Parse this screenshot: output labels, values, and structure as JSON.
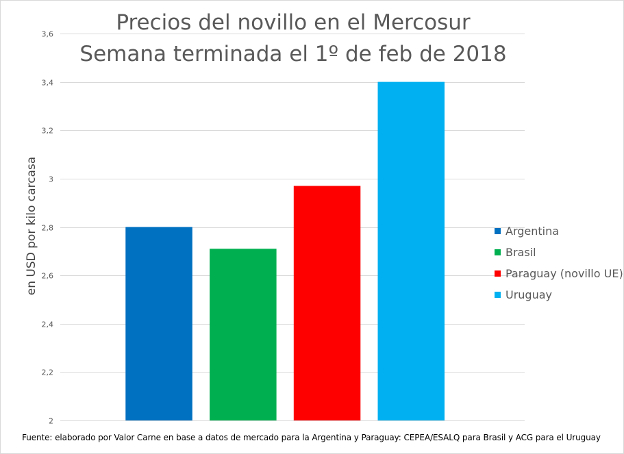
{
  "chart_data": {
    "type": "bar",
    "title_lines": [
      "Precios del novillo en el Mercosur",
      "Semana terminada el 1º de feb de 2018"
    ],
    "xlabel": "",
    "ylabel": "en USD por kilo carcasa",
    "ylim": [
      2,
      3.6
    ],
    "y_ticks": [
      "2",
      "2,2",
      "2,4",
      "2,6",
      "2,8",
      "3",
      "3,2",
      "3,4",
      "3,6"
    ],
    "y_tick_values": [
      2,
      2.2,
      2.4,
      2.6,
      2.8,
      3.0,
      3.2,
      3.4,
      3.6
    ],
    "grid": true,
    "legend_position": "right",
    "categories": [
      "Argentina",
      "Brasil",
      "Paraguay (novillo UE)",
      "Uruguay"
    ],
    "series": [
      {
        "name": "Argentina",
        "value": 2.8,
        "color": "#0070c0"
      },
      {
        "name": "Brasil",
        "value": 2.71,
        "color": "#00b050"
      },
      {
        "name": "Paraguay (novillo UE)",
        "value": 2.97,
        "color": "#ff0000"
      },
      {
        "name": "Uruguay",
        "value": 3.4,
        "color": "#00b0f0"
      }
    ]
  },
  "footer": {
    "source": "Fuente: elaborado por Valor Carne en base a datos de mercado para la Argentina y Paraguay: CEPEA/ESALQ para Brasil y ACG para el Uruguay"
  }
}
